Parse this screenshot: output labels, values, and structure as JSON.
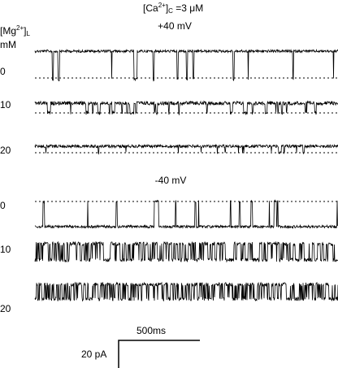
{
  "header": {
    "ca_open": "[Ca",
    "ca_sup": "2+",
    "ca_close": "]",
    "ca_sub": "C",
    "ca_value": " =3 μM"
  },
  "mg_label": {
    "open": "[Mg",
    "sup": "2+",
    "close": "]",
    "sub": "L",
    "unit": "mM"
  },
  "panels": [
    {
      "title": "+40 mV",
      "rows": [
        "0",
        "10",
        "20"
      ]
    },
    {
      "title": "-40 mV",
      "rows": [
        "0",
        "10",
        "20"
      ]
    }
  ],
  "scale_bar": {
    "time": "500ms",
    "current": "20 pA"
  }
}
